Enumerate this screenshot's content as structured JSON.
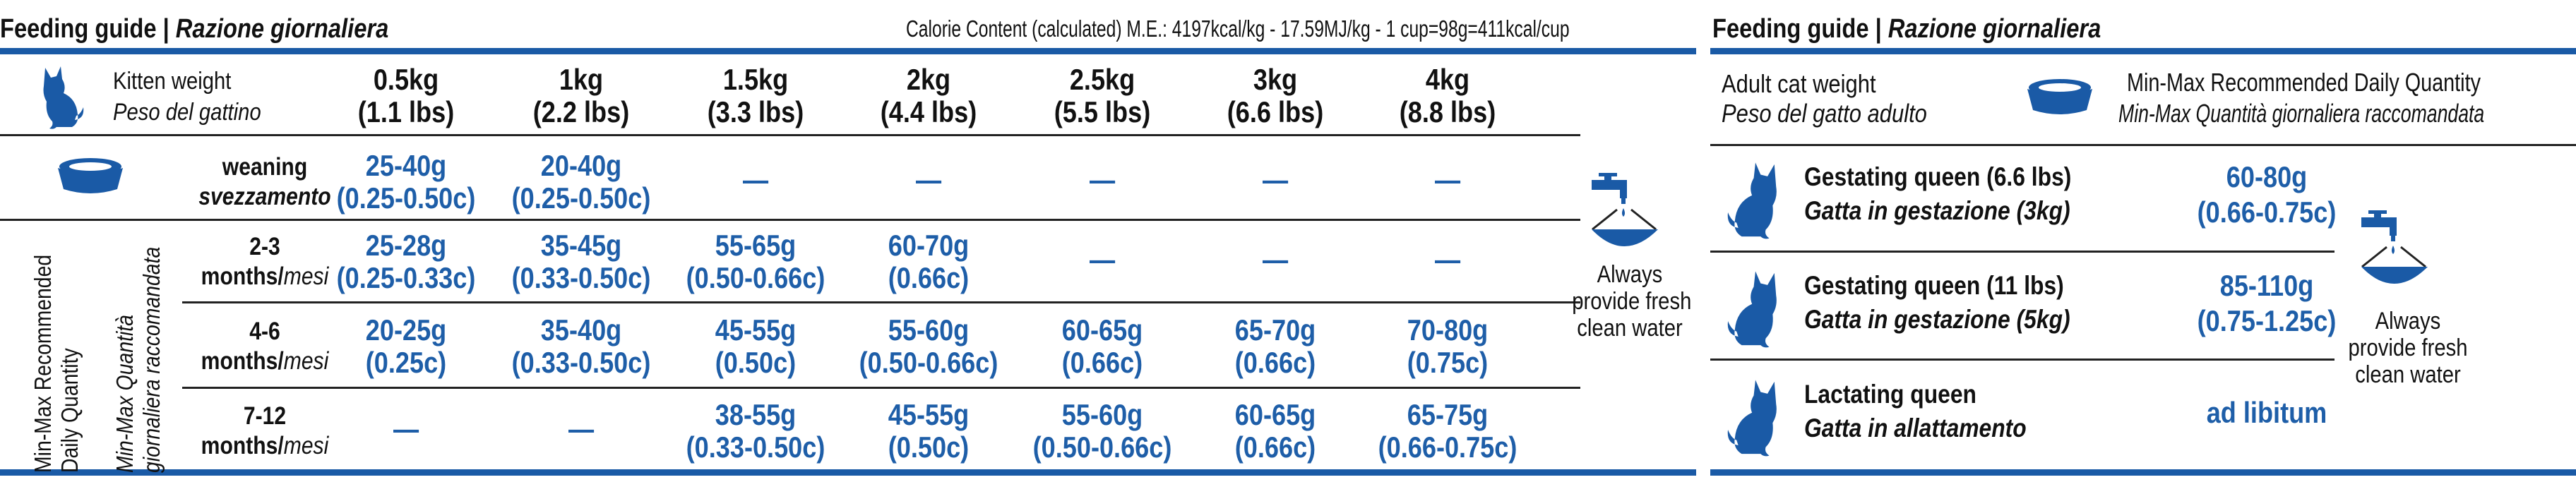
{
  "left_header": {
    "title_bold": "Feeding guide | ",
    "title_italic": "Razione giornaliera",
    "calorie": "Calorie Content (calculated) M.E.: 4197kcal/kg - 17.59MJ/kg - 1 cup=98g=411kcal/cup"
  },
  "kitten_table": {
    "row_label_en": "Kitten weight",
    "row_label_it": "Peso del gattino",
    "weights": [
      {
        "kg": "0.5kg",
        "lbs": "(1.1 lbs)"
      },
      {
        "kg": "1kg",
        "lbs": "(2.2 lbs)"
      },
      {
        "kg": "1.5kg",
        "lbs": "(3.3 lbs)"
      },
      {
        "kg": "2kg",
        "lbs": "(4.4 lbs)"
      },
      {
        "kg": "2.5kg",
        "lbs": "(5.5 lbs)"
      },
      {
        "kg": "3kg",
        "lbs": "(6.6 lbs)"
      },
      {
        "kg": "4kg",
        "lbs": "(8.8 lbs)"
      }
    ],
    "side_label_en_1": "Min-Max Recommended",
    "side_label_en_2": "Daily Quantity",
    "side_label_it_1": "Min-Max Quantità",
    "side_label_it_2": "giornaliera raccomandata",
    "rows": [
      {
        "label_1": "weaning",
        "label_2": "svezzamento",
        "cells": [
          {
            "g": "25-40g",
            "c": "(0.25-0.50c)"
          },
          {
            "g": "20-40g",
            "c": "(0.25-0.50c)"
          },
          {
            "dash": "—"
          },
          {
            "dash": "—"
          },
          {
            "dash": "—"
          },
          {
            "dash": "—"
          },
          {
            "dash": "—"
          }
        ]
      },
      {
        "label_1": "2-3",
        "label_2a": "months/",
        "label_2b": "mesi",
        "cells": [
          {
            "g": "25-28g",
            "c": "(0.25-0.33c)"
          },
          {
            "g": "35-45g",
            "c": "(0.33-0.50c)"
          },
          {
            "g": "55-65g",
            "c": "(0.50-0.66c)"
          },
          {
            "g": "60-70g",
            "c": "(0.66c)"
          },
          {
            "dash": "—"
          },
          {
            "dash": "—"
          },
          {
            "dash": "—"
          }
        ]
      },
      {
        "label_1": "4-6",
        "label_2a": "months/",
        "label_2b": "mesi",
        "cells": [
          {
            "g": "20-25g",
            "c": "(0.25c)"
          },
          {
            "g": "35-40g",
            "c": "(0.33-0.50c)"
          },
          {
            "g": "45-55g",
            "c": "(0.50c)"
          },
          {
            "g": "55-60g",
            "c": "(0.50-0.66c)"
          },
          {
            "g": "60-65g",
            "c": "(0.66c)"
          },
          {
            "g": "65-70g",
            "c": "(0.66c)"
          },
          {
            "g": "70-80g",
            "c": "(0.75c)"
          }
        ]
      },
      {
        "label_1": "7-12",
        "label_2a": "months/",
        "label_2b": "mesi",
        "cells": [
          {
            "dash": "—"
          },
          {
            "dash": "—"
          },
          {
            "g": "38-55g",
            "c": "(0.33-0.50c)"
          },
          {
            "g": "45-55g",
            "c": "(0.50c)"
          },
          {
            "g": "55-60g",
            "c": "(0.50-0.66c)"
          },
          {
            "g": "60-65g",
            "c": "(0.66c)"
          },
          {
            "g": "65-75g",
            "c": "(0.66-0.75c)"
          }
        ]
      }
    ],
    "water": [
      "Always",
      "provide fresh",
      "clean water"
    ]
  },
  "right_header": {
    "title_bold": "Feeding guide | ",
    "title_italic": "Razione giornaliera"
  },
  "adult_table": {
    "label_en": "Adult cat weight",
    "label_it": "Peso del gatto adulto",
    "qty_en": "Min-Max Recommended Daily Quantity",
    "qty_it": "Min-Max Quantità giornaliera raccomandata",
    "rows": [
      {
        "en": "Gestating queen (6.6 lbs)",
        "it": "Gatta in gestazione (3kg)",
        "g": "60-80g",
        "c": "(0.66-0.75c)"
      },
      {
        "en": "Gestating queen (11 lbs)",
        "it": "Gatta in gestazione (5kg)",
        "g": "85-110g",
        "c": "(0.75-1.25c)"
      },
      {
        "en": "Lactating queen",
        "it": "Gatta in allattamento",
        "g": "ad libitum",
        "c": ""
      }
    ],
    "water": [
      "Always",
      "provide fresh",
      "clean water"
    ]
  },
  "colors": {
    "brand_blue": "#1a5aa6",
    "value_blue": "#1e5ea8"
  },
  "icons": [
    "cat-sitting-icon",
    "food-bowl-icon",
    "water-tap-icon"
  ]
}
